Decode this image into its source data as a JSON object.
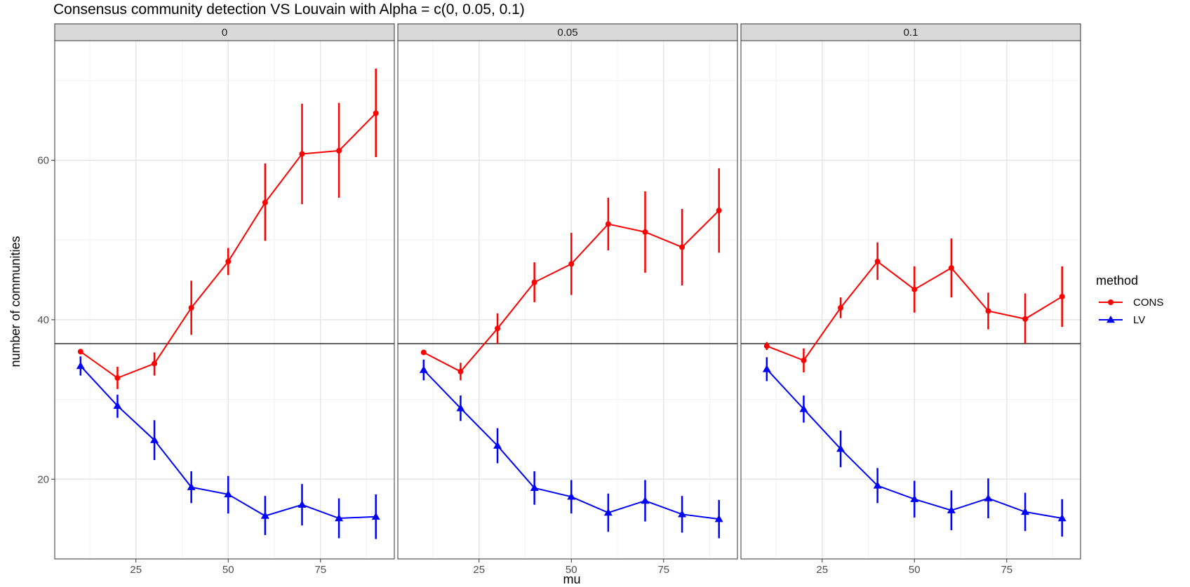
{
  "chart_data": {
    "type": "line",
    "title": "Consensus community detection VS Louvain with Alpha = c(0, 0.05, 0.1)",
    "xlabel": "mu",
    "ylabel": "number of communities",
    "xlim": [
      3,
      95
    ],
    "ylim": [
      10,
      75
    ],
    "x_ticks": [
      25,
      50,
      75
    ],
    "y_ticks": [
      20,
      40,
      60
    ],
    "reference_line_y": 37,
    "grid": true,
    "legend": {
      "title": "method",
      "position": "right",
      "entries": [
        {
          "name": "CONS",
          "color": "#ff0000",
          "marker": "circle"
        },
        {
          "name": "LV",
          "color": "#0000ff",
          "marker": "triangle"
        }
      ]
    },
    "x": [
      10,
      20,
      30,
      40,
      50,
      60,
      70,
      80,
      90
    ],
    "facets": [
      {
        "label": "0",
        "series": [
          {
            "name": "CONS",
            "values": [
              36,
              32.7,
              34.5,
              41.5,
              47.3,
              54.7,
              60.8,
              61.2,
              65.9
            ],
            "lower": [
              35.8,
              31.3,
              33.0,
              38.1,
              45.6,
              49.9,
              54.5,
              55.3,
              60.4
            ],
            "upper": [
              36.2,
              34.1,
              35.9,
              44.9,
              49.0,
              59.6,
              67.1,
              67.2,
              71.5
            ]
          },
          {
            "name": "LV",
            "values": [
              34.2,
              29.2,
              24.9,
              19.0,
              18.1,
              15.4,
              16.8,
              15.1,
              15.3
            ],
            "lower": [
              33.0,
              27.7,
              22.4,
              17.0,
              15.7,
              13.0,
              14.2,
              12.6,
              12.5
            ],
            "upper": [
              35.4,
              30.6,
              27.4,
              21.0,
              20.4,
              17.9,
              19.4,
              17.6,
              18.1
            ]
          }
        ]
      },
      {
        "label": "0.05",
        "series": [
          {
            "name": "CONS",
            "values": [
              35.9,
              33.5,
              38.9,
              44.7,
              47.0,
              52.0,
              51.0,
              49.1,
              53.7
            ],
            "lower": [
              35.7,
              32.4,
              37.0,
              42.2,
              43.1,
              48.7,
              45.9,
              44.3,
              48.4
            ],
            "upper": [
              36.1,
              34.6,
              40.8,
              47.2,
              50.9,
              55.3,
              56.1,
              53.9,
              59.0
            ]
          },
          {
            "name": "LV",
            "values": [
              33.7,
              28.9,
              24.2,
              18.9,
              17.8,
              15.8,
              17.3,
              15.6,
              15.0
            ],
            "lower": [
              32.4,
              27.3,
              22.0,
              16.8,
              15.7,
              13.4,
              14.7,
              13.3,
              12.6
            ],
            "upper": [
              35.0,
              30.5,
              26.4,
              21.0,
              19.9,
              18.2,
              19.9,
              17.9,
              17.4
            ]
          }
        ]
      },
      {
        "label": "0.1",
        "series": [
          {
            "name": "CONS",
            "values": [
              36.7,
              34.9,
              41.5,
              47.3,
              43.8,
              46.5,
              41.1,
              40.1,
              42.9
            ],
            "lower": [
              36.2,
              33.4,
              40.2,
              45.0,
              40.9,
              42.8,
              38.8,
              37.0,
              39.1
            ],
            "upper": [
              37.2,
              36.4,
              42.8,
              49.7,
              46.7,
              50.2,
              43.4,
              43.3,
              46.7
            ]
          },
          {
            "name": "LV",
            "values": [
              33.8,
              28.8,
              23.8,
              19.2,
              17.5,
              16.1,
              17.6,
              15.9,
              15.1
            ],
            "lower": [
              32.3,
              27.1,
              21.5,
              17.0,
              15.2,
              13.6,
              15.1,
              13.5,
              12.8
            ],
            "upper": [
              35.3,
              30.5,
              26.1,
              21.4,
              19.8,
              18.6,
              20.1,
              18.3,
              17.5
            ]
          }
        ]
      }
    ]
  }
}
